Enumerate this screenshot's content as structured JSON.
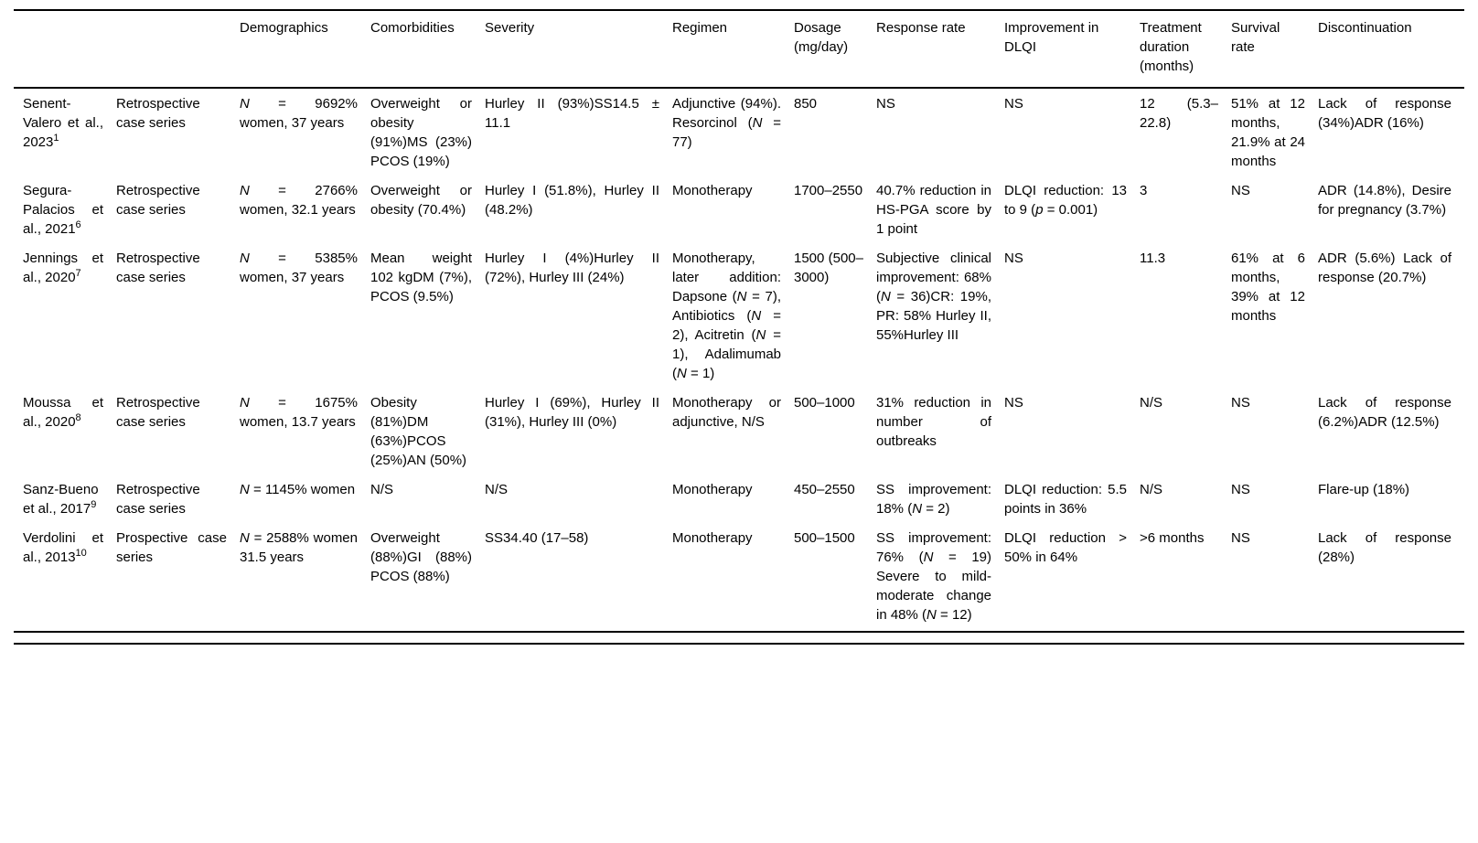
{
  "table": {
    "columns": [
      {
        "key": "study",
        "label": ""
      },
      {
        "key": "design",
        "label": ""
      },
      {
        "key": "demographics",
        "label": "Demographics"
      },
      {
        "key": "comorbidities",
        "label": "Comorbidities"
      },
      {
        "key": "severity",
        "label": "Severity"
      },
      {
        "key": "regimen",
        "label": "Regimen"
      },
      {
        "key": "dosage",
        "label": "Dosage (mg/day)"
      },
      {
        "key": "response",
        "label": "Response rate"
      },
      {
        "key": "dlqi",
        "label": "Improvement in DLQI"
      },
      {
        "key": "duration",
        "label": "Treatment duration (months)"
      },
      {
        "key": "survival",
        "label": "Survival rate"
      },
      {
        "key": "discontinuation",
        "label": "Discontinuation"
      }
    ],
    "rows": [
      {
        "study": "Senent-Valero et al., 2023^1^",
        "design": "Retrospective case series",
        "demographics": "*N* = 9692% women, 37 years",
        "comorbidities": "Overweight or obesity (91%)MS (23%) PCOS (19%)",
        "severity": "Hurley II (93%)SS14.5 ± 11.1",
        "regimen": "Adjunctive (94%). Resorcinol (*N* = 77)",
        "dosage": "850",
        "response": "NS",
        "dlqi": "NS",
        "duration": "12 (5.3–22.8)",
        "survival": "51% at 12 months, 21.9% at 24 months",
        "discontinuation": "Lack of response (34%)ADR (16%)"
      },
      {
        "study": "Segura-Palacios et al., 2021^6^",
        "design": "Retrospective case series",
        "demographics": "*N* = 2766% women, 32.1 years",
        "comorbidities": "Overweight or obesity (70.4%)",
        "severity": "Hurley I (51.8%), Hurley II (48.2%)",
        "regimen": "Monotherapy",
        "dosage": "1700–2550",
        "response": "40.7% reduction in HS-PGA score by 1 point",
        "dlqi": "DLQI reduction: 13 to 9 (*p* = 0.001)",
        "duration": "3",
        "survival": "NS",
        "discontinuation": "ADR (14.8%), Desire for pregnancy (3.7%)"
      },
      {
        "study": "Jennings et al., 2020^7^",
        "design": "Retrospective case series",
        "demographics": "*N* = 5385% women, 37 years",
        "comorbidities": "Mean weight 102 kgDM (7%), PCOS (9.5%)",
        "severity": "Hurley I (4%)Hurley II (72%), Hurley III (24%)",
        "regimen": "Monotherapy, later addition: Dapsone (*N* = 7), Antibiotics (*N* = 2), Acitretin (*N* = 1), Adalimumab (*N* = 1)",
        "dosage": "1500 (500–3000)",
        "response": "Subjective clinical improvement: 68% (*N* = 36)CR: 19%, PR: 58% Hurley II, 55%Hurley III",
        "dlqi": "NS",
        "duration": "11.3",
        "survival": "61% at 6 months, 39% at 12 months",
        "discontinuation": "ADR (5.6%) Lack of response (20.7%)"
      },
      {
        "study": "Moussa et al., 2020^8^",
        "design": "Retrospective case series",
        "demographics": "*N* = 1675% women, 13.7 years",
        "comorbidities": "Obesity (81%)DM (63%)PCOS (25%)AN (50%)",
        "severity": "Hurley I (69%), Hurley II (31%), Hurley III (0%)",
        "regimen": "Monotherapy or adjunctive, N/S",
        "dosage": "500–1000",
        "response": "31% reduction in number of outbreaks",
        "dlqi": "NS",
        "duration": "N/S",
        "survival": "NS",
        "discontinuation": "Lack of response (6.2%)ADR (12.5%)"
      },
      {
        "study": "Sanz-Bueno et al., 2017^9^",
        "design": "Retrospective case series",
        "demographics": "*N* = 1145% women",
        "comorbidities": "N/S",
        "severity": "N/S",
        "regimen": "Monotherapy",
        "dosage": "450–2550",
        "response": "SS improvement: 18% (*N* = 2)",
        "dlqi": "DLQI reduction: 5.5 points in 36%",
        "duration": "N/S",
        "survival": "NS",
        "discontinuation": "Flare-up (18%)"
      },
      {
        "study": "Verdolini et al., 2013^10^",
        "design": "Prospective case series",
        "demographics": "*N* = 2588% women 31.5 years",
        "comorbidities": "Overweight (88%)GI (88%) PCOS (88%)",
        "severity": "SS34.40 (17–58)",
        "regimen": "Monotherapy",
        "dosage": "500–1500",
        "response": "SS improvement: 76% (*N* = 19) Severe to mild-moderate change in 48% (*N* = 12)",
        "dlqi": "DLQI reduction > 50% in 64%",
        "duration": ">6 months",
        "survival": "NS",
        "discontinuation": "Lack of response (28%)"
      }
    ]
  }
}
